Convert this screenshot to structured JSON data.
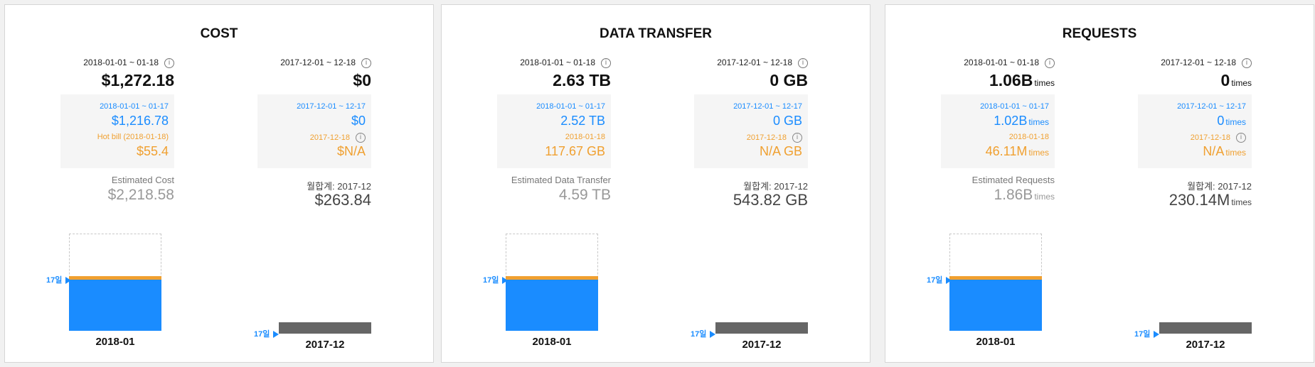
{
  "panels": [
    {
      "title": "COST",
      "current": {
        "period": "2018-01-01 ~ 01-18",
        "value": "$1,272.18",
        "unit": "",
        "compare_period": "2018-01-01 ~ 01-17",
        "compare_value": "$1,216.78",
        "hot_label": "Hot bill (2018-01-18)",
        "hot_value": "$55.4",
        "est_label": "Estimated Cost",
        "est_value": "$2,218.58",
        "est_unit": "",
        "day_label": "17일",
        "month": "2018-01"
      },
      "previous": {
        "period": "2017-12-01 ~ 12-18",
        "value": "$0",
        "unit": "",
        "compare_period": "2017-12-01 ~ 12-17",
        "compare_value": "$0",
        "hot_label": "2017-12-18",
        "hot_value": "$N/A",
        "month_label": "월합계: 2017-12",
        "month_value": "$263.84",
        "month_unit": "",
        "day_label": "17일",
        "month": "2017-12"
      }
    },
    {
      "title": "DATA TRANSFER",
      "current": {
        "period": "2018-01-01 ~ 01-18",
        "value": "2.63 TB",
        "unit": "",
        "compare_period": "2018-01-01 ~ 01-17",
        "compare_value": "2.52 TB",
        "hot_label": "2018-01-18",
        "hot_value": "117.67 GB",
        "est_label": "Estimated Data Transfer",
        "est_value": "4.59 TB",
        "est_unit": "",
        "day_label": "17일",
        "month": "2018-01"
      },
      "previous": {
        "period": "2017-12-01 ~ 12-18",
        "value": "0 GB",
        "unit": "",
        "compare_period": "2017-12-01 ~ 12-17",
        "compare_value": "0 GB",
        "hot_label": "2017-12-18",
        "hot_value": "N/A GB",
        "month_label": "월합계: 2017-12",
        "month_value": "543.82 GB",
        "month_unit": "",
        "day_label": "17일",
        "month": "2017-12"
      }
    },
    {
      "title": "REQUESTS",
      "current": {
        "period": "2018-01-01 ~ 01-18",
        "value": "1.06B",
        "unit": "times",
        "compare_period": "2018-01-01 ~ 01-17",
        "compare_value": "1.02B",
        "compare_unit": "times",
        "hot_label": "2018-01-18",
        "hot_value": "46.11M",
        "hot_unit": "times",
        "est_label": "Estimated Requests",
        "est_value": "1.86B",
        "est_unit": "times",
        "day_label": "17일",
        "month": "2018-01"
      },
      "previous": {
        "period": "2017-12-01 ~ 12-18",
        "value": "0",
        "unit": "times",
        "compare_period": "2017-12-01 ~ 12-17",
        "compare_value": "0",
        "compare_unit": "times",
        "hot_label": "2017-12-18",
        "hot_value": "N/A",
        "hot_unit": "times",
        "month_label": "월합계: 2017-12",
        "month_value": "230.14M",
        "month_unit": "times",
        "day_label": "17일",
        "month": "2017-12"
      }
    }
  ],
  "colors": {
    "accent_blue": "#1a8cff",
    "accent_orange": "#f0a030",
    "bar_gray": "#666666"
  },
  "icons": {
    "info": "info-icon",
    "day_marker": "triangle-right-icon"
  }
}
